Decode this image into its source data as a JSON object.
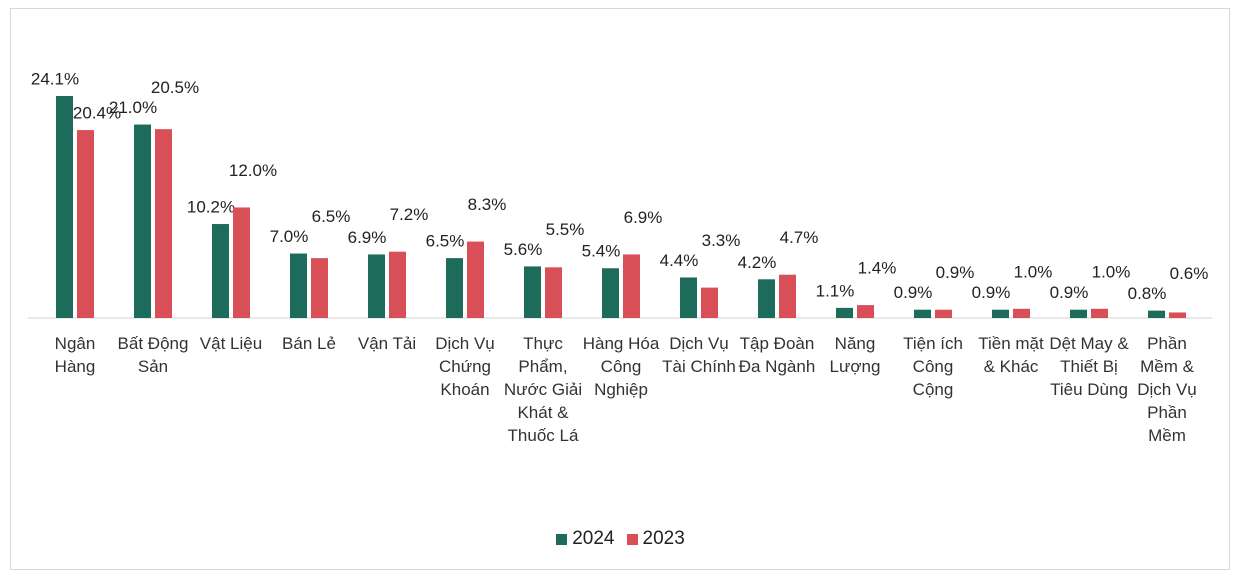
{
  "chart_data": {
    "type": "bar",
    "categories": [
      "Ngân Hàng",
      "Bất Động Sản",
      "Vật Liệu",
      "Bán Lẻ",
      "Vận Tải",
      "Dịch Vụ Chứng Khoán",
      "Thực Phẩm, Nước Giải Khát & Thuốc Lá",
      "Hàng Hóa Công Nghiệp",
      "Dịch Vụ Tài Chính",
      "Tập Đoàn Đa Ngành",
      "Năng Lượng",
      "Tiện ích Công Cộng",
      "Tiền mặt & Khác",
      "Dệt May & Thiết Bị Tiêu Dùng",
      "Phần Mềm & Dịch Vụ Phần Mềm"
    ],
    "series": [
      {
        "name": "2024",
        "color": "#1d6b5b",
        "values": [
          24.1,
          21.0,
          10.2,
          7.0,
          6.9,
          6.5,
          5.6,
          5.4,
          4.4,
          4.2,
          1.1,
          0.9,
          0.9,
          0.9,
          0.8
        ],
        "value_labels": [
          "24.1%",
          "21.0%",
          "10.2%",
          "7.0%",
          "6.9%",
          "6.5%",
          "5.6%",
          "5.4%",
          "4.4%",
          "4.2%",
          "1.1%",
          "0.9%",
          "0.9%",
          "0.9%",
          "0.8%"
        ]
      },
      {
        "name": "2023",
        "color": "#d94f58",
        "values": [
          20.4,
          20.5,
          12.0,
          6.5,
          7.2,
          8.3,
          5.5,
          6.9,
          3.3,
          4.7,
          1.4,
          0.9,
          1.0,
          1.0,
          0.6
        ],
        "value_labels": [
          "20.4%",
          "20.5%",
          "12.0%",
          "6.5%",
          "7.2%",
          "8.3%",
          "5.5%",
          "6.9%",
          "3.3%",
          "4.7%",
          "1.4%",
          "0.9%",
          "1.0%",
          "1.0%",
          "0.6%"
        ]
      }
    ],
    "legend": "bottom"
  }
}
